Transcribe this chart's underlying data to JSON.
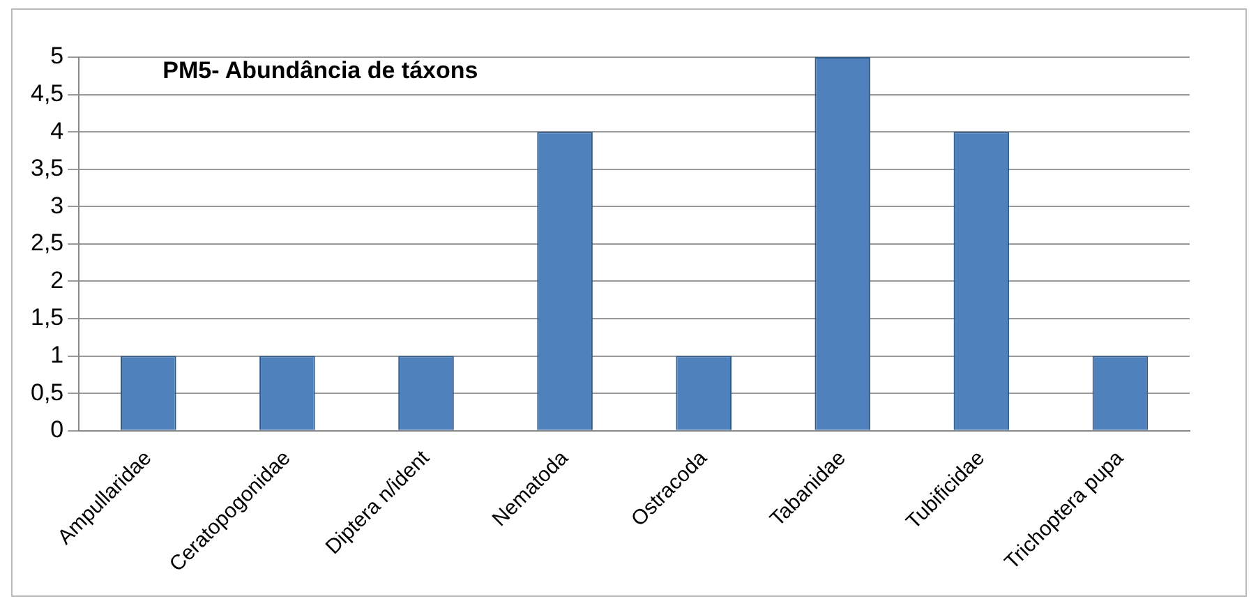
{
  "chart_data": {
    "type": "bar",
    "title": "PM5- Abundância de táxons",
    "categories": [
      "Ampullaridae",
      "Ceratopogonidae",
      "Diptera n/ident",
      "Nematoda",
      "Ostracoda",
      "Tabanidae",
      "Tubificidae",
      "Trichoptera pupa"
    ],
    "values": [
      1,
      1,
      1,
      4,
      1,
      5,
      4,
      1
    ],
    "color": "#4f81bd",
    "ylim": [
      0,
      5
    ],
    "yticks": [
      0,
      {
        "value": 0.5,
        "label": "0,5"
      },
      1,
      {
        "value": 1.5,
        "label": "1,5"
      },
      2,
      {
        "value": 2.5,
        "label": "2,5"
      },
      3,
      {
        "value": 3.5,
        "label": "3,5"
      },
      4,
      {
        "value": 4.5,
        "label": "4,5"
      },
      5
    ],
    "grid": "y",
    "legend": false
  }
}
